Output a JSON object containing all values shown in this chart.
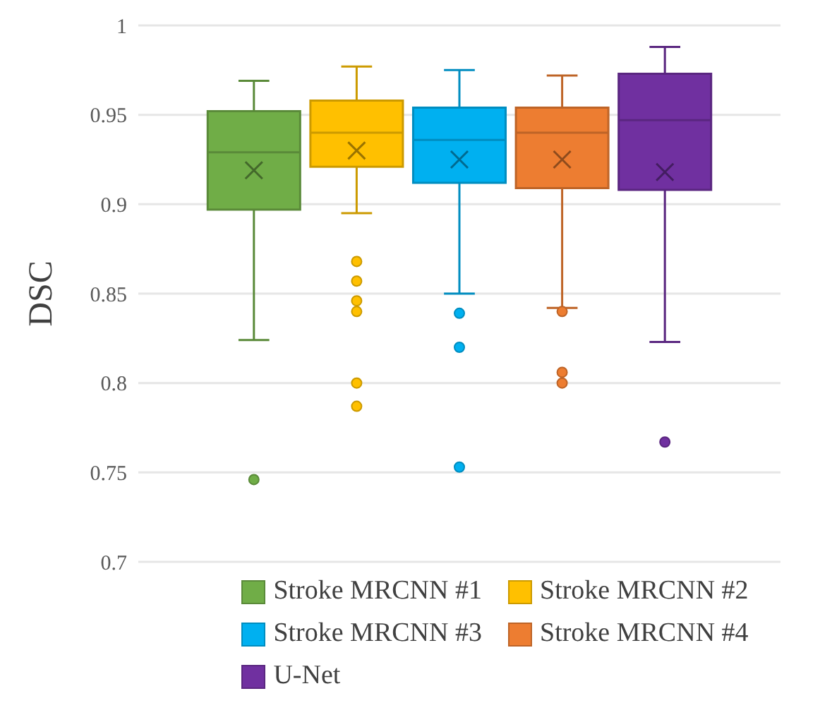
{
  "chart_data": {
    "type": "box",
    "ylabel": "DSC",
    "categories": [
      null
    ],
    "ylim": [
      0.7,
      1
    ],
    "yticks": [
      0.7,
      0.75,
      0.8,
      0.85,
      0.9,
      0.95,
      1
    ],
    "grid": "y",
    "legend": "bottom",
    "tick_labels": "y",
    "series": [
      {
        "name": "Stroke MRCNN #1",
        "color": "#70ad47",
        "boxes": [
          {
            "low": 0.824,
            "q1": 0.897,
            "median": 0.929,
            "q3": 0.952,
            "high": 0.969,
            "mean": 0.919,
            "outliers": [
              0.746
            ]
          }
        ]
      },
      {
        "name": "Stroke MRCNN #2",
        "color": "#ffc000",
        "boxes": [
          {
            "low": 0.895,
            "q1": 0.921,
            "median": 0.94,
            "q3": 0.958,
            "high": 0.977,
            "mean": 0.93,
            "outliers": [
              0.868,
              0.857,
              0.846,
              0.84,
              0.8,
              0.787
            ]
          }
        ]
      },
      {
        "name": "Stroke MRCNN #3",
        "color": "#00b0f0",
        "boxes": [
          {
            "low": 0.85,
            "q1": 0.912,
            "median": 0.936,
            "q3": 0.954,
            "high": 0.975,
            "mean": 0.925,
            "outliers": [
              0.839,
              0.82,
              0.753
            ]
          }
        ]
      },
      {
        "name": "Stroke MRCNN #4",
        "color": "#ed7d31",
        "boxes": [
          {
            "low": 0.842,
            "q1": 0.909,
            "median": 0.94,
            "q3": 0.954,
            "high": 0.972,
            "mean": 0.925,
            "outliers": [
              0.84,
              0.806,
              0.8
            ]
          }
        ]
      },
      {
        "name": "U-Net",
        "color": "#7030a0",
        "boxes": [
          {
            "low": 0.823,
            "q1": 0.908,
            "median": 0.947,
            "q3": 0.973,
            "high": 0.988,
            "mean": 0.918,
            "outliers": [
              0.767
            ]
          }
        ]
      }
    ]
  }
}
